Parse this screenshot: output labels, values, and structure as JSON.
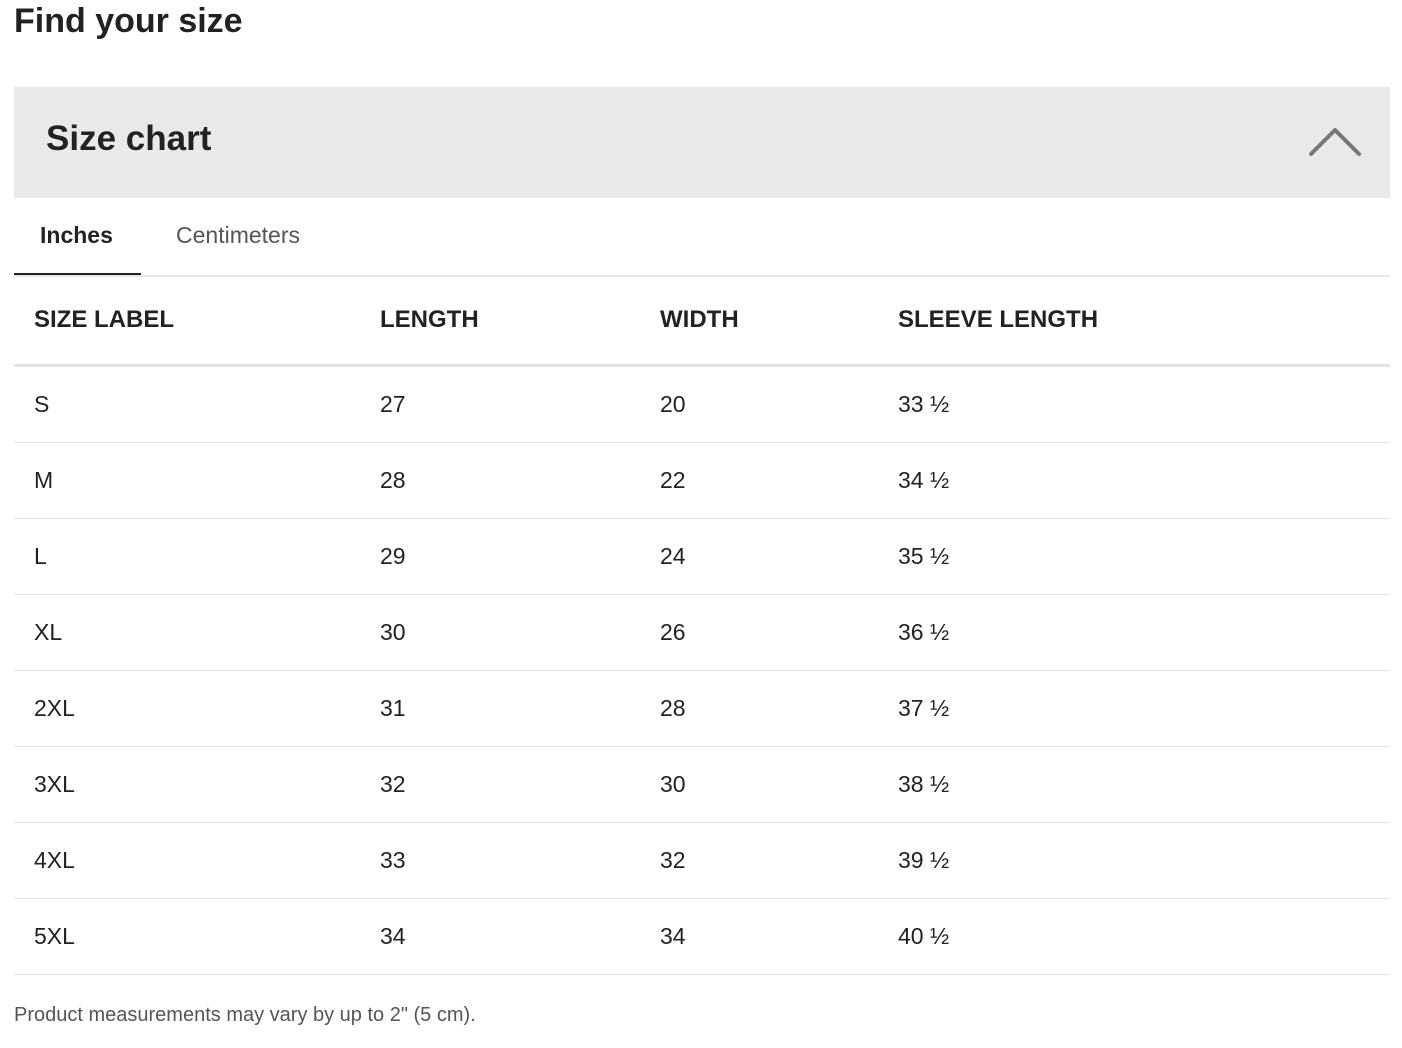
{
  "page_title": "Find your size",
  "panel": {
    "title": "Size chart",
    "icon": "chevron-up-icon",
    "expanded": true
  },
  "tabs": [
    {
      "label": "Inches",
      "active": true
    },
    {
      "label": "Centimeters",
      "active": false
    }
  ],
  "table": {
    "headers": [
      "SIZE LABEL",
      "LENGTH",
      "WIDTH",
      "SLEEVE LENGTH"
    ],
    "rows": [
      [
        "S",
        "27",
        "20",
        "33 ½"
      ],
      [
        "M",
        "28",
        "22",
        "34 ½"
      ],
      [
        "L",
        "29",
        "24",
        "35 ½"
      ],
      [
        "XL",
        "30",
        "26",
        "36 ½"
      ],
      [
        "2XL",
        "31",
        "28",
        "37 ½"
      ],
      [
        "3XL",
        "32",
        "30",
        "38 ½"
      ],
      [
        "4XL",
        "33",
        "32",
        "39 ½"
      ],
      [
        "5XL",
        "34",
        "34",
        "40 ½"
      ]
    ]
  },
  "note": "Product measurements may vary by up to 2\" (5 cm)."
}
